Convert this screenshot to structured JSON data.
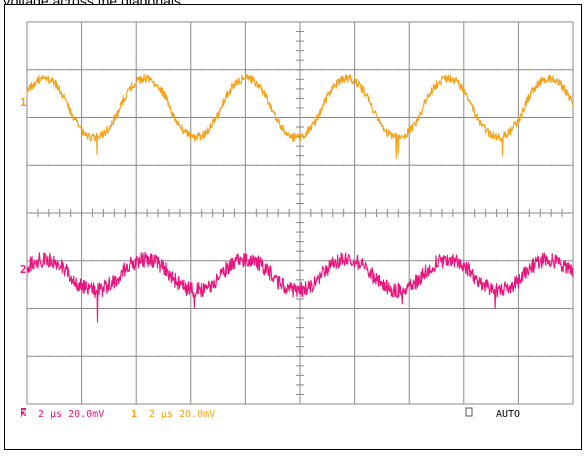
{
  "caption": "Voltage across the diagonals",
  "colors": {
    "frame": "#000000",
    "grid": "#8a8a8a",
    "channel1": "#f5a218",
    "channel2": "#e8167f",
    "status_text": "#000000"
  },
  "screen": {
    "divisions_x": 10,
    "divisions_y": 8
  },
  "channels": [
    {
      "id": "1",
      "marker_label": "1",
      "time_per_div": "2 μs",
      "volts_per_div": "20.0mV",
      "color": "#f5a218",
      "trace": {
        "center_div": 1.8,
        "amplitude_div": 0.62,
        "period_div": 1.85,
        "phase_div": 0.15,
        "noise_div": 0.09,
        "spike_div": 0.45
      }
    },
    {
      "id": "2",
      "marker_label": "2",
      "time_per_div": "2 μs",
      "volts_per_div": "20.0mV",
      "color": "#e8167f",
      "trace": {
        "center_div": 5.3,
        "amplitude_div": 0.32,
        "period_div": 1.85,
        "phase_div": 0.15,
        "noise_div": 0.16,
        "spike_div": 0.5
      }
    }
  ],
  "status": {
    "ch2_badge": "2",
    "ch2_text": "2 μs 20.0mV",
    "ch1_badge": "1",
    "ch1_text": "2 μs 20.0mV",
    "mode_icon": "square-outline-icon",
    "mode": "AUTO"
  }
}
